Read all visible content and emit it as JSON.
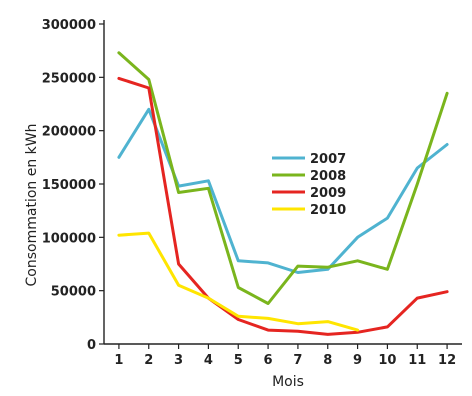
{
  "chart_data": {
    "type": "line",
    "title": "",
    "xlabel": "Mois",
    "ylabel": "Consommation en kWh",
    "x": [
      1,
      2,
      3,
      4,
      5,
      6,
      7,
      8,
      9,
      10,
      11,
      12
    ],
    "xlim": [
      1,
      12
    ],
    "ylim": [
      0,
      300000
    ],
    "yticks": [
      0,
      50000,
      100000,
      150000,
      200000,
      250000,
      300000
    ],
    "ytick_labels": [
      "0",
      "50000",
      "100000",
      "150000",
      "200000",
      "250000",
      "300000"
    ],
    "xtick_labels": [
      "1",
      "2",
      "3",
      "4",
      "5",
      "6",
      "7",
      "8",
      "9",
      "10",
      "11",
      "12"
    ],
    "grid": false,
    "legend_position": "center",
    "series": [
      {
        "name": "2007",
        "color": "#4fb3d0",
        "values": [
          175000,
          220000,
          148000,
          153000,
          78000,
          76000,
          67000,
          70000,
          100000,
          118000,
          165000,
          187000
        ]
      },
      {
        "name": "2008",
        "color": "#7ab51d",
        "values": [
          273000,
          248000,
          142000,
          146000,
          53000,
          38000,
          73000,
          72000,
          78000,
          70000,
          150000,
          235000
        ]
      },
      {
        "name": "2009",
        "color": "#e52521",
        "values": [
          249000,
          240000,
          75000,
          43000,
          23000,
          13000,
          12000,
          9000,
          11000,
          16000,
          43000,
          49000
        ]
      },
      {
        "name": "2010",
        "color": "#ffe500",
        "values": [
          102000,
          104000,
          55000,
          43000,
          26000,
          24000,
          19000,
          21000,
          13000,
          null,
          null,
          null
        ]
      }
    ]
  }
}
